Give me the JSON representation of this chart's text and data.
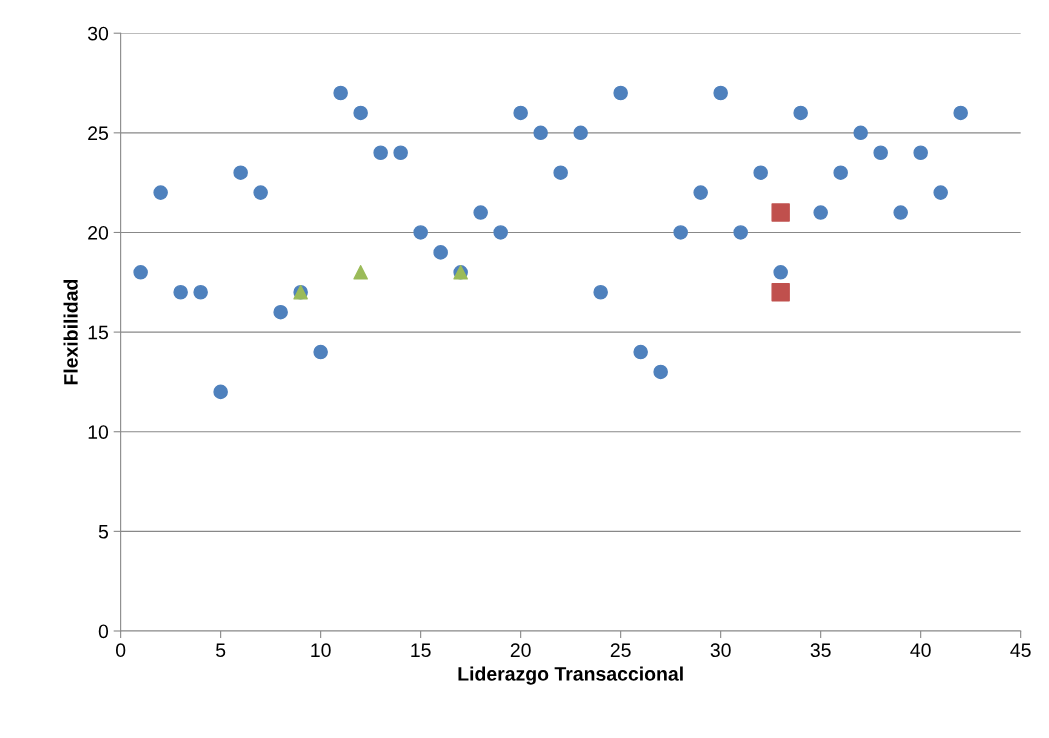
{
  "chart_data": {
    "type": "scatter",
    "xlabel": "Liderazgo Transaccional",
    "ylabel": "Flexibilidad",
    "xlim": [
      0,
      45
    ],
    "xticks": [
      0,
      5,
      10,
      15,
      20,
      25,
      30,
      35,
      40,
      45
    ],
    "ylim": [
      0,
      30
    ],
    "yticks": [
      0,
      5,
      10,
      15,
      20,
      25,
      30
    ],
    "grid": "y",
    "legend": false,
    "series": [
      {
        "color": "#4f81bd",
        "marker": "circle",
        "x": [
          1,
          2,
          3,
          4,
          5,
          6,
          7,
          8,
          9,
          10,
          11,
          12,
          13,
          14,
          15,
          16,
          17,
          18,
          19,
          20,
          21,
          22,
          23,
          24,
          25,
          26,
          27,
          28,
          29,
          30,
          31,
          32,
          33,
          34,
          35,
          36,
          37,
          38,
          39,
          40,
          41,
          42
        ],
        "values": [
          18,
          22,
          17,
          17,
          12,
          23,
          22,
          16,
          17,
          14,
          27,
          26,
          24,
          24,
          20,
          19,
          18,
          21,
          20,
          26,
          25,
          23,
          25,
          17,
          27,
          14,
          13,
          20,
          22,
          27,
          20,
          23,
          18,
          26,
          21,
          23,
          25,
          24,
          21,
          24,
          22,
          26
        ]
      },
      {
        "color": "#9bbb59",
        "marker": "triangle",
        "x": [
          9,
          12,
          17
        ],
        "values": [
          17,
          18,
          18
        ]
      },
      {
        "color": "#c0504d",
        "marker": "square",
        "x": [
          33,
          33
        ],
        "values": [
          21,
          17
        ]
      }
    ]
  }
}
